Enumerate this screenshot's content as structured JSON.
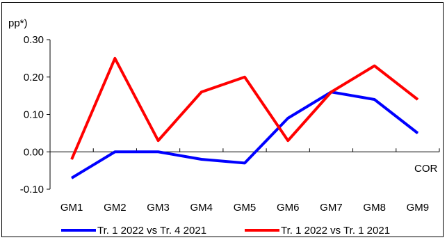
{
  "chart_data": {
    "type": "line",
    "ylabel": "pp*)",
    "xlabel": "COR",
    "categories": [
      "GM1",
      "GM2",
      "GM3",
      "GM4",
      "GM5",
      "GM6",
      "GM7",
      "GM8",
      "GM9"
    ],
    "ylim": [
      -0.1,
      0.3
    ],
    "yticks": [
      "-0.10",
      "0.00",
      "0.10",
      "0.20",
      "0.30"
    ],
    "yticks_values": [
      -0.1,
      0.0,
      0.1,
      0.2,
      0.3
    ],
    "grid": false,
    "legend_position": "bottom",
    "series": [
      {
        "name": "Tr. 1 2022 vs Tr. 4 2021",
        "color": "#0000FF",
        "values": [
          -0.07,
          0.0,
          0.0,
          -0.02,
          -0.03,
          0.09,
          0.16,
          0.14,
          0.05
        ]
      },
      {
        "name": "Tr. 1 2022 vs Tr. 1 2021",
        "color": "#FF0000",
        "values": [
          -0.02,
          0.25,
          0.03,
          0.16,
          0.2,
          0.03,
          0.16,
          0.23,
          0.14
        ]
      }
    ]
  }
}
